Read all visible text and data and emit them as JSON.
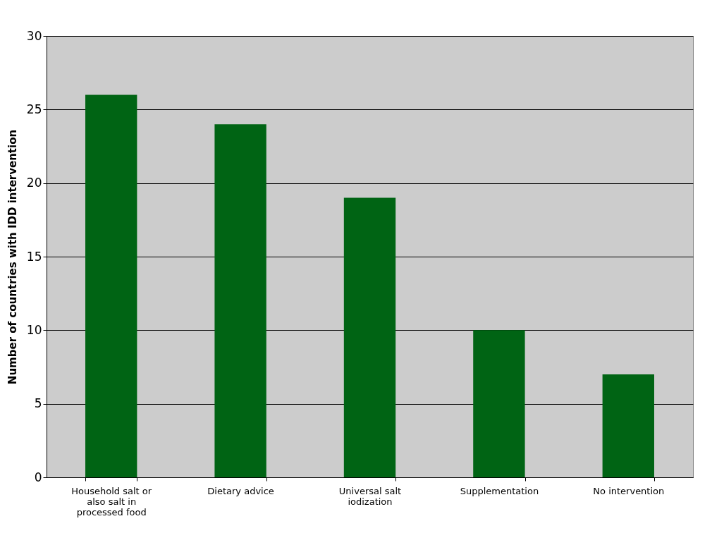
{
  "chart_data": {
    "type": "bar",
    "ylabel": "Number of countries with IDD intervention",
    "categories": [
      "Household salt or also salt in processed food",
      "Dietary advice",
      "Universal salt iodization",
      "Supplementation",
      "No intervention"
    ],
    "values": [
      26,
      24,
      19,
      10,
      7
    ],
    "color": "#006414",
    "ylim": [
      0,
      30
    ],
    "yticks": [
      0,
      5,
      10,
      15,
      20,
      25,
      30
    ],
    "grid": "y"
  }
}
